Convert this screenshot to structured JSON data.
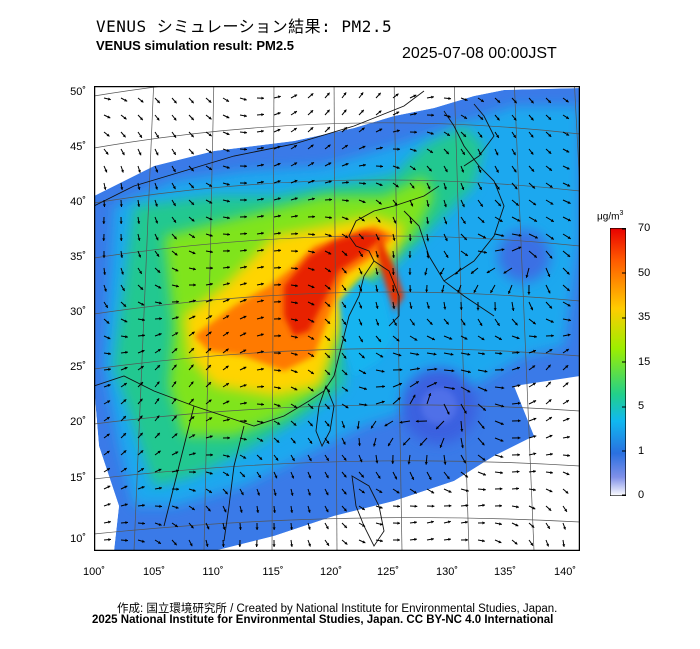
{
  "header": {
    "title_ja": "VENUS シミュレーション結果: PM2.5",
    "title_en": "VENUS simulation result: PM2.5",
    "timestamp": "2025-07-08 00:00JST"
  },
  "map": {
    "lat_labels": [
      "50˚",
      "45˚",
      "40˚",
      "35˚",
      "30˚",
      "25˚",
      "20˚",
      "15˚",
      "10˚"
    ],
    "lon_labels": [
      "100˚",
      "105˚",
      "110˚",
      "115˚",
      "120˚",
      "125˚",
      "130˚",
      "135˚",
      "140˚"
    ]
  },
  "colorbar": {
    "unit": "μg/m",
    "unit_sup": "3",
    "labels": [
      "70",
      "50",
      "35",
      "15",
      "5",
      "1",
      "0"
    ],
    "colors": [
      "#ff0000",
      "#ff6a00",
      "#ffd200",
      "#8cef00",
      "#22d07a",
      "#18b4f0",
      "#3a50e0",
      "#ffffff"
    ]
  },
  "footer": {
    "credit": "作成: 国立環境研究所 / Created by National Institute for Environmental Studies, Japan.",
    "copyright": "2025 National Institute for Environmental Studies, Japan. CC BY-NC 4.0 International"
  }
}
